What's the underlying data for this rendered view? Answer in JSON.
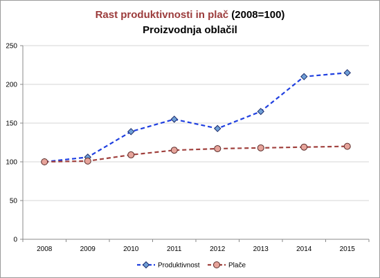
{
  "chart_data": {
    "type": "line",
    "title_part1": "Rast produktivnosti in plač",
    "title_part2": "(2008=100)",
    "subtitle": "Proizvodnja oblačil",
    "categories": [
      "2008",
      "2009",
      "2010",
      "2011",
      "2012",
      "2013",
      "2014",
      "2015"
    ],
    "y_ticks": [
      "0",
      "50",
      "100",
      "150",
      "200",
      "250"
    ],
    "ylim": [
      0,
      250
    ],
    "grid": "horizontal",
    "legend_placement": "bottom",
    "series": [
      {
        "name": "Produktivnost",
        "values": [
          100,
          106,
          139,
          155,
          143,
          165,
          210,
          215
        ],
        "color": "#1f3fe0",
        "marker": "diamond",
        "marker_fill": "#6f9fd6",
        "dash": "dashed"
      },
      {
        "name": "Plače",
        "values": [
          100,
          101,
          109,
          115,
          117,
          118,
          119,
          120
        ],
        "color": "#a0403d",
        "marker": "circle",
        "marker_fill": "#e6a49b",
        "dash": "dashed"
      }
    ]
  }
}
